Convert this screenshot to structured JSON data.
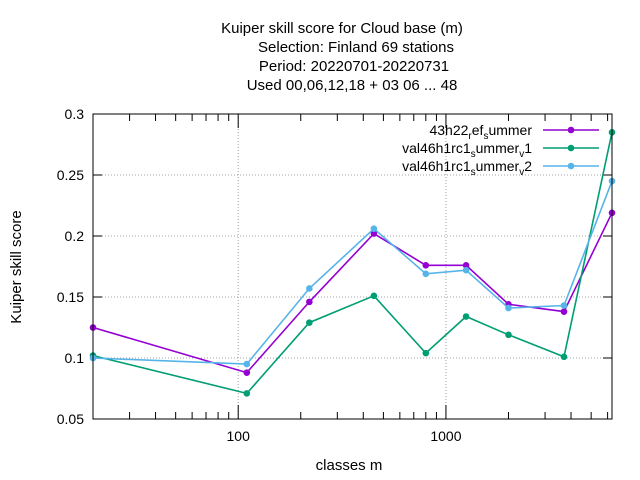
{
  "chart_data": {
    "type": "line",
    "title_lines": [
      "Kuiper skill score  for Cloud base (m)",
      "Selection: Finland     69 stations",
      "Period: 20220701-20220731",
      "Used  00,06,12,18  + 03 06 ... 48"
    ],
    "xlabel": "classes m",
    "ylabel": "Kuiper skill score",
    "x_scale": "log",
    "xlim": [
      20,
      6300
    ],
    "ylim": [
      0.05,
      0.3
    ],
    "x_tick_labels": [
      {
        "value": 100,
        "label": "100"
      },
      {
        "value": 1000,
        "label": "1000"
      }
    ],
    "y_tick_labels": [
      {
        "value": 0.05,
        "label": "0.05"
      },
      {
        "value": 0.1,
        "label": "0.1"
      },
      {
        "value": 0.15,
        "label": "0.15"
      },
      {
        "value": 0.2,
        "label": "0.2"
      },
      {
        "value": 0.25,
        "label": "0.25"
      },
      {
        "value": 0.3,
        "label": "0.3"
      }
    ],
    "grid": true,
    "legend_position": "top-right",
    "x": [
      20,
      110,
      220,
      450,
      800,
      1250,
      2000,
      3700,
      6300
    ],
    "series": [
      {
        "name_base": "43h22",
        "name_sub1": "r",
        "name_mid": "ef",
        "name_sub2": "s",
        "name_tail": "ummer",
        "color": "#9400d3",
        "values": [
          0.125,
          0.088,
          0.146,
          0.202,
          0.176,
          0.176,
          0.144,
          0.138,
          0.219
        ]
      },
      {
        "name_base": "val46h1rc1",
        "name_sub1": "s",
        "name_mid": "ummer",
        "name_sub2": "v",
        "name_tail": "1",
        "color": "#009e73",
        "values": [
          0.102,
          0.071,
          0.129,
          0.151,
          0.104,
          0.134,
          0.119,
          0.101,
          0.285
        ]
      },
      {
        "name_base": "val46h1rc1",
        "name_sub1": "s",
        "name_mid": "ummer",
        "name_sub2": "v",
        "name_tail": "2",
        "color": "#56b4e9",
        "values": [
          0.1,
          0.095,
          0.157,
          0.206,
          0.169,
          0.172,
          0.141,
          0.143,
          0.245
        ]
      }
    ]
  }
}
